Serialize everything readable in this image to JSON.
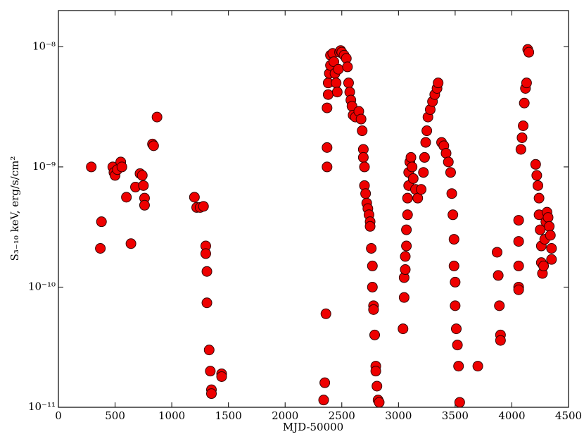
{
  "chart_data": {
    "type": "scatter",
    "xlabel": "MJD-50000",
    "ylabel": "S₃₋₁₀ keV, erg/s/cm²",
    "color": "#ee0000",
    "log_y": true,
    "xlim": [
      0,
      4500
    ],
    "xticks": [
      0,
      500,
      1000,
      1500,
      2000,
      2500,
      3000,
      3500,
      4000,
      4500
    ],
    "ylim": [
      1e-11,
      2e-08
    ],
    "yticks": [
      {
        "value": 1e-11,
        "label": "10⁻¹¹"
      },
      {
        "value": 1e-10,
        "label": "10⁻¹⁰"
      },
      {
        "value": 1e-09,
        "label": "10⁻⁹"
      },
      {
        "value": 1e-08,
        "label": "10⁻⁸"
      }
    ],
    "x": [
      290,
      380,
      370,
      480,
      490,
      500,
      520,
      550,
      560,
      600,
      640,
      680,
      720,
      740,
      750,
      760,
      760,
      830,
      840,
      870,
      1200,
      1220,
      1250,
      1280,
      1300,
      1300,
      1310,
      1310,
      1330,
      1340,
      1350,
      1350,
      1440,
      1440,
      2340,
      2350,
      2360,
      2370,
      2370,
      2370,
      2380,
      2380,
      2390,
      2400,
      2400,
      2420,
      2430,
      2440,
      2450,
      2460,
      2470,
      2480,
      2490,
      2500,
      2520,
      2540,
      2550,
      2560,
      2570,
      2580,
      2590,
      2600,
      2620,
      2650,
      2670,
      2680,
      2690,
      2690,
      2700,
      2700,
      2710,
      2720,
      2730,
      2740,
      2750,
      2750,
      2760,
      2770,
      2770,
      2780,
      2780,
      2790,
      2800,
      2800,
      2810,
      2820,
      2830,
      3040,
      3050,
      3050,
      3060,
      3060,
      3070,
      3070,
      3080,
      3080,
      3090,
      3090,
      3100,
      3110,
      3120,
      3130,
      3150,
      3170,
      3200,
      3220,
      3230,
      3240,
      3250,
      3260,
      3280,
      3300,
      3320,
      3340,
      3350,
      3380,
      3400,
      3420,
      3440,
      3460,
      3470,
      3480,
      3490,
      3490,
      3500,
      3500,
      3510,
      3520,
      3530,
      3540,
      3700,
      3870,
      3880,
      3890,
      3900,
      3900,
      4060,
      4060,
      4060,
      4060,
      4060,
      4080,
      4090,
      4100,
      4110,
      4120,
      4130,
      4140,
      4150,
      4210,
      4220,
      4230,
      4240,
      4240,
      4250,
      4260,
      4260,
      4270,
      4280,
      4290,
      4300,
      4310,
      4320,
      4330,
      4340,
      4350,
      4350
    ],
    "y": [
      1e-09,
      3.5e-10,
      2.1e-10,
      1e-09,
      9e-10,
      8.5e-10,
      9.5e-10,
      1.1e-09,
      1e-09,
      5.6e-10,
      2.3e-10,
      6.8e-10,
      8.8e-10,
      8.5e-10,
      7e-10,
      5.5e-10,
      4.8e-10,
      1.55e-09,
      1.5e-09,
      2.6e-09,
      5.6e-10,
      4.6e-10,
      4.6e-10,
      4.7e-10,
      2.2e-10,
      1.9e-10,
      1.35e-10,
      7.4e-11,
      3e-11,
      2e-11,
      1.4e-11,
      1.3e-11,
      1.9e-11,
      1.8e-11,
      1.15e-11,
      1.6e-11,
      6e-11,
      1e-09,
      1.45e-09,
      3.1e-09,
      4e-09,
      5e-09,
      6e-09,
      7e-09,
      8.5e-09,
      8.8e-09,
      7.5e-09,
      6e-09,
      5e-09,
      4.2e-09,
      6.5e-09,
      9e-09,
      9.3e-09,
      9e-09,
      8.5e-09,
      8e-09,
      6.8e-09,
      5e-09,
      4.2e-09,
      3.6e-09,
      3.2e-09,
      2.7e-09,
      2.6e-09,
      2.9e-09,
      2.5e-09,
      2e-09,
      1.4e-09,
      1.2e-09,
      1e-09,
      7e-10,
      6e-10,
      5e-10,
      4.5e-10,
      4e-10,
      3.5e-10,
      3.2e-10,
      2.1e-10,
      1.5e-10,
      1e-10,
      7e-11,
      6.5e-11,
      4e-11,
      2.2e-11,
      2e-11,
      1.5e-11,
      1.15e-11,
      1.1e-11,
      4.5e-11,
      8.2e-11,
      1.2e-10,
      1.4e-10,
      1.8e-10,
      2.2e-10,
      3e-10,
      4e-10,
      5.5e-10,
      7e-10,
      9e-10,
      1.1e-09,
      1.2e-09,
      1e-09,
      8e-10,
      6.5e-10,
      5.5e-10,
      6.5e-10,
      9e-10,
      1.2e-09,
      1.6e-09,
      2e-09,
      2.6e-09,
      3e-09,
      3.5e-09,
      4e-09,
      4.5e-09,
      5e-09,
      1.6e-09,
      1.5e-09,
      1.3e-09,
      1.1e-09,
      9e-10,
      6e-10,
      4e-10,
      2.5e-10,
      1.5e-10,
      1.1e-10,
      7e-11,
      4.5e-11,
      3.3e-11,
      2.2e-11,
      1.1e-11,
      2.2e-11,
      1.95e-10,
      1.25e-10,
      7e-11,
      4e-11,
      3.6e-11,
      3.6e-10,
      2.4e-10,
      1.5e-10,
      1e-10,
      9.5e-11,
      1.4e-09,
      1.75e-09,
      2.2e-09,
      3.4e-09,
      4.5e-09,
      5e-09,
      9.5e-09,
      9e-09,
      1.05e-09,
      8.5e-10,
      7e-10,
      5.5e-10,
      4e-10,
      3e-10,
      2.2e-10,
      1.6e-10,
      1.3e-10,
      1.5e-10,
      2.5e-10,
      3.5e-10,
      4.2e-10,
      3.8e-10,
      3.2e-10,
      2.7e-10,
      2.1e-10,
      1.7e-10
    ]
  }
}
